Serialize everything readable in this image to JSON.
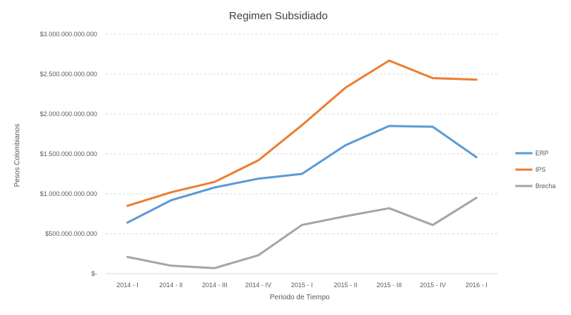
{
  "chart_data": {
    "type": "line",
    "title": "Regimen Subsidiado",
    "xlabel": "Periodo de Tiempo",
    "ylabel": "Pesos Colombianos",
    "categories": [
      "2014 - I",
      "2014 - II",
      "2014 - III",
      "2014 - IV",
      "2015 - I",
      "2015 - II",
      "2015 - III",
      "2015 - IV",
      "2016 - I"
    ],
    "ylim": [
      0,
      3000000000000
    ],
    "yticks": [
      {
        "value": 0,
        "label": "$-"
      },
      {
        "value": 500000000000,
        "label": "$500.000.000.000"
      },
      {
        "value": 1000000000000,
        "label": "$1.000.000.000.000"
      },
      {
        "value": 1500000000000,
        "label": "$1.500.000.000.000"
      },
      {
        "value": 2000000000000,
        "label": "$2.000.000.000.000"
      },
      {
        "value": 2500000000000,
        "label": "$2.500.000.000.000"
      },
      {
        "value": 3000000000000,
        "label": "$3.000.000.000.000"
      }
    ],
    "grid": true,
    "legend_position": "right",
    "series": [
      {
        "name": "ERP",
        "color": "#5b9bd5",
        "values": [
          640000000000,
          920000000000,
          1080000000000,
          1190000000000,
          1250000000000,
          1610000000000,
          1850000000000,
          1840000000000,
          1460000000000
        ]
      },
      {
        "name": "IPS",
        "color": "#ed7d31",
        "values": [
          850000000000,
          1020000000000,
          1150000000000,
          1420000000000,
          1860000000000,
          2330000000000,
          2670000000000,
          2450000000000,
          2430000000000
        ]
      },
      {
        "name": "Brecha",
        "color": "#a5a5a5",
        "values": [
          210000000000,
          100000000000,
          70000000000,
          230000000000,
          610000000000,
          720000000000,
          820000000000,
          610000000000,
          950000000000
        ]
      }
    ]
  }
}
